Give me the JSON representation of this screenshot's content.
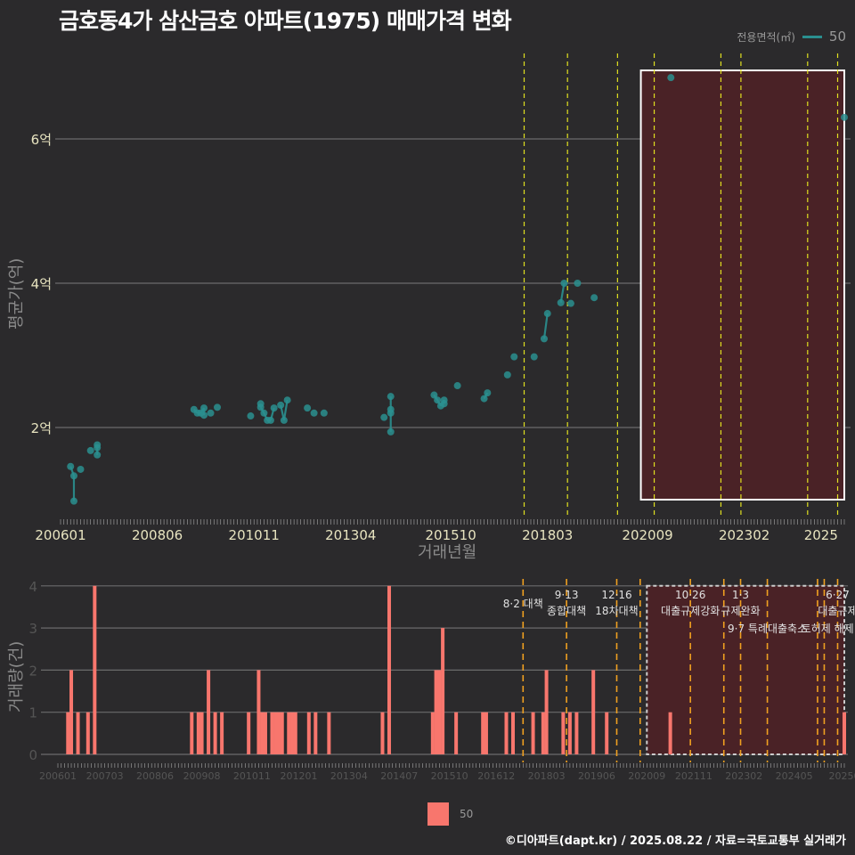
{
  "title": "금호동4가 삼산금호 아파트(1975) 매매가격 변화",
  "legend_top": {
    "label": "전용면적(㎡)",
    "value": "50",
    "color": "#2a8f8f"
  },
  "legend_bottom": {
    "value": "50",
    "color": "#f8766d"
  },
  "footer": "©디아파트(dapt.kr) / 2025.08.22 / 자료=국토교통부 실거래가",
  "chart_data": [
    {
      "type": "scatter",
      "title": "금호동4가 삼산금호 아파트(1975) 매매가격 변화",
      "xlabel": "거래년월",
      "ylabel": "평균가(억)",
      "x_ticks": [
        "200601",
        "200806",
        "201011",
        "201304",
        "201510",
        "201803",
        "202009",
        "202302",
        "2025"
      ],
      "y_ticks": [
        "2억",
        "4억",
        "6억"
      ],
      "ylim": [
        0.9,
        7.0
      ],
      "series": [
        {
          "name": "50",
          "points": [
            {
              "x": "200604",
              "y": 1.46
            },
            {
              "x": "200605",
              "y": 1.33
            },
            {
              "x": "200605",
              "y": 0.98
            },
            {
              "x": "200607",
              "y": 1.42
            },
            {
              "x": "200610",
              "y": 1.68
            },
            {
              "x": "200612",
              "y": 1.76
            },
            {
              "x": "200612",
              "y": 1.72
            },
            {
              "x": "200612",
              "y": 1.62
            },
            {
              "x": "200905",
              "y": 2.25
            },
            {
              "x": "200906",
              "y": 2.2
            },
            {
              "x": "200907",
              "y": 2.2
            },
            {
              "x": "200908",
              "y": 2.27
            },
            {
              "x": "200908",
              "y": 2.17
            },
            {
              "x": "200910",
              "y": 2.2
            },
            {
              "x": "200912",
              "y": 2.28
            },
            {
              "x": "201010",
              "y": 2.16
            },
            {
              "x": "201101",
              "y": 2.33
            },
            {
              "x": "201101",
              "y": 2.28
            },
            {
              "x": "201102",
              "y": 2.2
            },
            {
              "x": "201103",
              "y": 2.1
            },
            {
              "x": "201104",
              "y": 2.1
            },
            {
              "x": "201105",
              "y": 2.27
            },
            {
              "x": "201107",
              "y": 2.31
            },
            {
              "x": "201108",
              "y": 2.1
            },
            {
              "x": "201109",
              "y": 2.38
            },
            {
              "x": "201203",
              "y": 2.27
            },
            {
              "x": "201205",
              "y": 2.2
            },
            {
              "x": "201208",
              "y": 2.2
            },
            {
              "x": "201402",
              "y": 2.14
            },
            {
              "x": "201404",
              "y": 2.43
            },
            {
              "x": "201404",
              "y": 2.25
            },
            {
              "x": "201404",
              "y": 2.2
            },
            {
              "x": "201404",
              "y": 1.94
            },
            {
              "x": "201505",
              "y": 2.45
            },
            {
              "x": "201506",
              "y": 2.38
            },
            {
              "x": "201507",
              "y": 2.3
            },
            {
              "x": "201508",
              "y": 2.38
            },
            {
              "x": "201508",
              "y": 2.33
            },
            {
              "x": "201512",
              "y": 2.58
            },
            {
              "x": "201608",
              "y": 2.4
            },
            {
              "x": "201609",
              "y": 2.48
            },
            {
              "x": "201703",
              "y": 2.73
            },
            {
              "x": "201705",
              "y": 2.98
            },
            {
              "x": "201711",
              "y": 2.98
            },
            {
              "x": "201802",
              "y": 3.23
            },
            {
              "x": "201803",
              "y": 3.58
            },
            {
              "x": "201807",
              "y": 3.73
            },
            {
              "x": "201808",
              "y": 4.0
            },
            {
              "x": "201810",
              "y": 3.72
            },
            {
              "x": "201812",
              "y": 4.0
            },
            {
              "x": "201905",
              "y": 3.8
            },
            {
              "x": "202104",
              "y": 6.85
            },
            {
              "x": "202508",
              "y": 6.3
            }
          ]
        }
      ],
      "policy_lines": [
        "201708",
        "201809",
        "201912",
        "202011",
        "202207",
        "202301",
        "202409",
        "202506"
      ],
      "highlight_box": {
        "x_from": "202007",
        "x_to": "202508",
        "y_from": 1.0,
        "y_to": 6.95
      }
    },
    {
      "type": "bar",
      "xlabel": "",
      "ylabel": "거래량(건)",
      "x_ticks": [
        "200601",
        "200703",
        "200806",
        "200908",
        "201011",
        "201201",
        "201304",
        "201407",
        "201510",
        "201612",
        "201803",
        "201906",
        "202009",
        "202111",
        "202302",
        "202405",
        "20250"
      ],
      "y_ticks": [
        0,
        1,
        2,
        3,
        4
      ],
      "ylim": [
        0,
        4
      ],
      "series": [
        {
          "name": "50",
          "bars": [
            {
              "x": "200604",
              "v": 1
            },
            {
              "x": "200605",
              "v": 2
            },
            {
              "x": "200607",
              "v": 1
            },
            {
              "x": "200610",
              "v": 1
            },
            {
              "x": "200612",
              "v": 4
            },
            {
              "x": "200905",
              "v": 1
            },
            {
              "x": "200907",
              "v": 1
            },
            {
              "x": "200908",
              "v": 1
            },
            {
              "x": "200910",
              "v": 2
            },
            {
              "x": "200912",
              "v": 1
            },
            {
              "x": "201002",
              "v": 1
            },
            {
              "x": "201010",
              "v": 1
            },
            {
              "x": "201101",
              "v": 2
            },
            {
              "x": "201102",
              "v": 1
            },
            {
              "x": "201103",
              "v": 1
            },
            {
              "x": "201105",
              "v": 1
            },
            {
              "x": "201106",
              "v": 1
            },
            {
              "x": "201107",
              "v": 1
            },
            {
              "x": "201108",
              "v": 1
            },
            {
              "x": "201110",
              "v": 1
            },
            {
              "x": "201111",
              "v": 1
            },
            {
              "x": "201112",
              "v": 1
            },
            {
              "x": "201204",
              "v": 1
            },
            {
              "x": "201206",
              "v": 1
            },
            {
              "x": "201210",
              "v": 1
            },
            {
              "x": "201402",
              "v": 1
            },
            {
              "x": "201404",
              "v": 4
            },
            {
              "x": "201505",
              "v": 1
            },
            {
              "x": "201506",
              "v": 2
            },
            {
              "x": "201507",
              "v": 2
            },
            {
              "x": "201508",
              "v": 3
            },
            {
              "x": "201512",
              "v": 1
            },
            {
              "x": "201608",
              "v": 1
            },
            {
              "x": "201609",
              "v": 1
            },
            {
              "x": "201703",
              "v": 1
            },
            {
              "x": "201705",
              "v": 1
            },
            {
              "x": "201711",
              "v": 1
            },
            {
              "x": "201802",
              "v": 1
            },
            {
              "x": "201803",
              "v": 2
            },
            {
              "x": "201808",
              "v": 1
            },
            {
              "x": "201810",
              "v": 1
            },
            {
              "x": "201812",
              "v": 1
            },
            {
              "x": "201905",
              "v": 2
            },
            {
              "x": "201909",
              "v": 1
            },
            {
              "x": "202104",
              "v": 1
            },
            {
              "x": "202508",
              "v": 1
            }
          ]
        }
      ],
      "annotations": [
        {
          "x": "201708",
          "line1": "",
          "line2": "8·2 대책"
        },
        {
          "x": "201809",
          "line1": "9·13",
          "line2": "종합대책"
        },
        {
          "x": "201912",
          "line1": "12·16",
          "line2": "18차대책"
        },
        {
          "x": "202110",
          "line1": "10·26",
          "line2": "대출규제강화"
        },
        {
          "x": "202301",
          "line1": "1·3",
          "line2": "규제완화"
        },
        {
          "x": "202309",
          "line1": "",
          "line2": "9·7 특례대출축소"
        },
        {
          "x": "202503",
          "line1": "",
          "line2": "토허제 해제"
        },
        {
          "x": "202506",
          "line1": "6·27",
          "line2": "대출규제"
        }
      ],
      "policy_lines": [
        "201708",
        "201809",
        "201912",
        "202007",
        "202110",
        "202208",
        "202301",
        "202309",
        "202412",
        "202502",
        "202506"
      ],
      "highlight_box": {
        "x_from": "202009",
        "x_to": "202508",
        "y_from": 0,
        "y_to": 4
      }
    }
  ]
}
